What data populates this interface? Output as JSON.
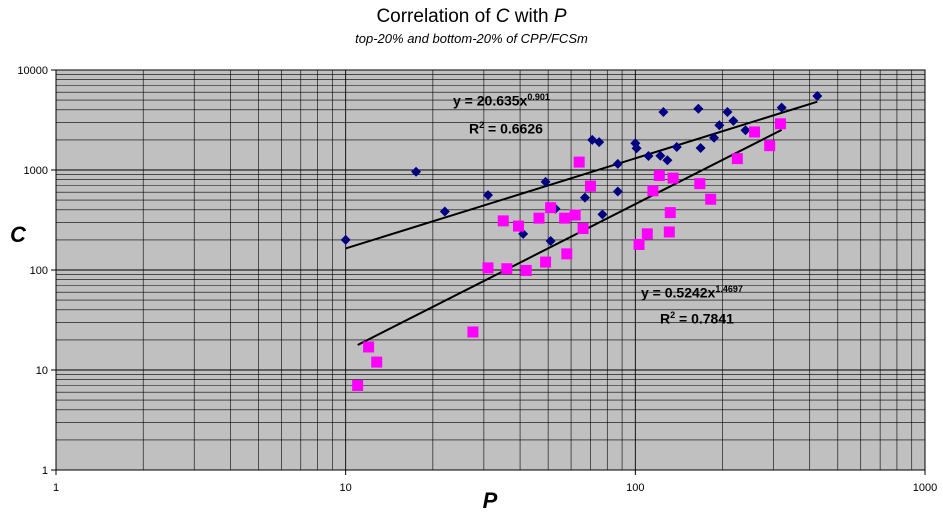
{
  "chart_data": {
    "type": "scatter",
    "title_prefix": "Correlation of",
    "title_var1": "C",
    "title_mid": "with",
    "title_var2": "P",
    "subtitle": "top-20% and bottom-20% of CPP/FCSm",
    "xlabel": "P",
    "ylabel": "C",
    "x_scale": "log",
    "y_scale": "log",
    "xlim": [
      1,
      1000
    ],
    "ylim": [
      1,
      10000
    ],
    "x_ticks": [
      "1",
      "10",
      "100",
      "1000"
    ],
    "y_ticks": [
      "1",
      "10",
      "100",
      "1000",
      "10000"
    ],
    "grid": true,
    "background": "#c0c0c0",
    "series": [
      {
        "marker": "diamond",
        "color": "#000080",
        "points": [
          [
            10,
            200
          ],
          [
            17.5,
            960
          ],
          [
            22,
            385
          ],
          [
            31,
            560
          ],
          [
            41,
            230
          ],
          [
            49,
            760
          ],
          [
            51,
            195
          ],
          [
            53,
            410
          ],
          [
            67,
            530
          ],
          [
            71,
            2000
          ],
          [
            75,
            1900
          ],
          [
            77,
            360
          ],
          [
            87,
            1150
          ],
          [
            87,
            610
          ],
          [
            100,
            1850
          ],
          [
            101,
            1650
          ],
          [
            111,
            1380
          ],
          [
            122,
            1390
          ],
          [
            125,
            3800
          ],
          [
            129,
            1250
          ],
          [
            139,
            1700
          ],
          [
            165,
            4100
          ],
          [
            168,
            1660
          ],
          [
            187,
            2100
          ],
          [
            195,
            2800
          ],
          [
            208,
            3800
          ],
          [
            218,
            3100
          ],
          [
            240,
            2500
          ],
          [
            320,
            4200
          ],
          [
            425,
            5500
          ]
        ],
        "trend": {
          "equation": "y = 20.635x",
          "exponent": "0.901",
          "r2_label": "R",
          "r2_value": " = 0.6626",
          "coef": 20.635,
          "pow": 0.901,
          "x_range": [
            10,
            425
          ]
        }
      },
      {
        "marker": "square",
        "color": "#ff00ff",
        "points": [
          [
            11,
            7
          ],
          [
            12,
            17
          ],
          [
            12.8,
            12
          ],
          [
            27.5,
            24
          ],
          [
            31,
            105
          ],
          [
            35,
            310
          ],
          [
            36,
            103
          ],
          [
            39.5,
            275
          ],
          [
            42,
            99
          ],
          [
            46.5,
            330
          ],
          [
            49,
            120
          ],
          [
            51,
            420
          ],
          [
            57,
            330
          ],
          [
            58,
            145
          ],
          [
            62,
            355
          ],
          [
            64,
            1200
          ],
          [
            66,
            260
          ],
          [
            70,
            690
          ],
          [
            103,
            180
          ],
          [
            110,
            230
          ],
          [
            115,
            620
          ],
          [
            121,
            880
          ],
          [
            131,
            240
          ],
          [
            132,
            375
          ],
          [
            135,
            830
          ],
          [
            167,
            730
          ],
          [
            182,
            510
          ],
          [
            225,
            1300
          ],
          [
            258,
            2400
          ],
          [
            291,
            1750
          ],
          [
            317,
            2900
          ]
        ],
        "trend": {
          "equation": "y = 0.5242x",
          "exponent": "1.4697",
          "r2_label": "R",
          "r2_value": " = 0.7841",
          "coef": 0.5242,
          "pow": 1.4697,
          "x_range": [
            11,
            320
          ]
        }
      }
    ]
  }
}
